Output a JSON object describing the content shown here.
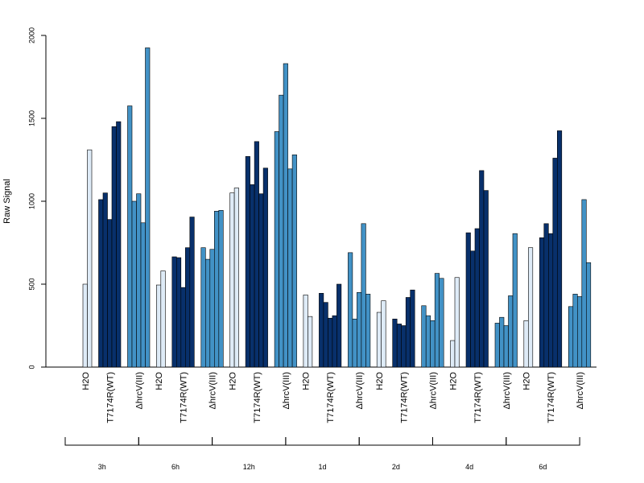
{
  "chart_data": {
    "type": "bar",
    "ylabel": "Raw Signal",
    "xlabel": "",
    "ylim": [
      0,
      2000
    ],
    "yticks": [
      0,
      500,
      1000,
      1500,
      2000
    ],
    "grid": false,
    "legend": "none",
    "colors": {
      "H2O": "#deebf7",
      "T7174R(WT)": "#08306b",
      "ΔhrcV(III)": "#4292c6"
    },
    "timepoints": [
      {
        "label": "3h",
        "groups": [
          {
            "name": "H2O",
            "values": [
              0,
              500,
              1310
            ]
          },
          {
            "name": "T7174R(WT)",
            "values": [
              1010,
              1050,
              890,
              1450,
              1480
            ]
          },
          {
            "name": "ΔhrcV(III)",
            "values": [
              1575,
              1000,
              1045,
              870,
              1925
            ]
          }
        ]
      },
      {
        "label": "6h",
        "groups": [
          {
            "name": "H2O",
            "values": [
              0,
              495,
              580
            ]
          },
          {
            "name": "T7174R(WT)",
            "values": [
              665,
              660,
              480,
              720,
              905
            ]
          },
          {
            "name": "ΔhrcV(III)",
            "values": [
              720,
              650,
              710,
              940,
              945
            ]
          }
        ]
      },
      {
        "label": "12h",
        "groups": [
          {
            "name": "H2O",
            "values": [
              0,
              1050,
              1080
            ]
          },
          {
            "name": "T7174R(WT)",
            "values": [
              1270,
              1100,
              1360,
              1045,
              1200
            ]
          },
          {
            "name": "ΔhrcV(III)",
            "values": [
              1420,
              1640,
              1830,
              1195,
              1280
            ]
          }
        ]
      },
      {
        "label": "1d",
        "groups": [
          {
            "name": "H2O",
            "values": [
              0,
              435,
              305
            ]
          },
          {
            "name": "T7174R(WT)",
            "values": [
              445,
              390,
              295,
              310,
              500
            ]
          },
          {
            "name": "ΔhrcV(III)",
            "values": [
              690,
              290,
              450,
              865,
              440
            ]
          }
        ]
      },
      {
        "label": "2d",
        "groups": [
          {
            "name": "H2O",
            "values": [
              0,
              330,
              400
            ]
          },
          {
            "name": "T7174R(WT)",
            "values": [
              290,
              260,
              250,
              420,
              465
            ]
          },
          {
            "name": "ΔhrcV(III)",
            "values": [
              370,
              310,
              280,
              565,
              535
            ]
          }
        ]
      },
      {
        "label": "4d",
        "groups": [
          {
            "name": "H2O",
            "values": [
              0,
              160,
              540
            ]
          },
          {
            "name": "T7174R(WT)",
            "values": [
              810,
              700,
              835,
              1185,
              1065
            ]
          },
          {
            "name": "ΔhrcV(III)",
            "values": [
              265,
              300,
              250,
              430,
              805
            ]
          }
        ]
      },
      {
        "label": "6d",
        "groups": [
          {
            "name": "H2O",
            "values": [
              0,
              280,
              720
            ]
          },
          {
            "name": "T7174R(WT)",
            "values": [
              780,
              865,
              805,
              1260,
              1425
            ]
          },
          {
            "name": "ΔhrcV(III)",
            "values": [
              365,
              440,
              425,
              1010,
              630
            ]
          }
        ]
      }
    ]
  }
}
